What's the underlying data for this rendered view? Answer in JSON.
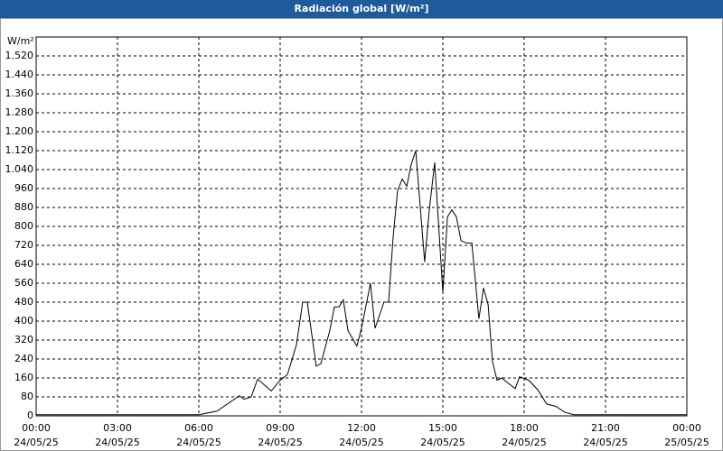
{
  "chart_data": {
    "type": "line",
    "title": "Radiación global [W/m²]",
    "y_unit": "W/m²",
    "x": [
      0,
      6,
      6.67,
      7.5,
      7.67,
      7.93,
      8.17,
      8.67,
      9.0,
      9.27,
      9.6,
      9.83,
      10.0,
      10.33,
      10.5,
      10.83,
      11.0,
      11.17,
      11.33,
      11.5,
      11.83,
      12.0,
      12.33,
      12.5,
      12.83,
      13.0,
      13.17,
      13.33,
      13.5,
      13.67,
      13.83,
      14.0,
      14.33,
      14.5,
      14.7,
      14.87,
      15.0,
      15.17,
      15.33,
      15.5,
      15.67,
      15.87,
      16.07,
      16.33,
      16.5,
      16.67,
      16.83,
      17.0,
      17.17,
      17.5,
      17.67,
      17.83,
      18.17,
      18.5,
      18.83,
      19.17,
      19.5,
      19.83,
      24
    ],
    "series": [
      {
        "name": "Radiación global",
        "color": "#000000",
        "values": [
          5,
          5,
          20,
          85,
          70,
          80,
          155,
          105,
          150,
          175,
          300,
          480,
          480,
          210,
          220,
          360,
          460,
          460,
          490,
          360,
          295,
          370,
          560,
          370,
          480,
          480,
          760,
          950,
          1000,
          970,
          1060,
          1120,
          650,
          870,
          1070,
          760,
          520,
          840,
          870,
          840,
          740,
          730,
          730,
          410,
          540,
          470,
          230,
          150,
          160,
          130,
          115,
          165,
          150,
          110,
          50,
          40,
          15,
          5,
          5
        ]
      }
    ],
    "xlim": [
      0,
      24
    ],
    "xticks": [
      {
        "value": 0,
        "label": "00:00"
      },
      {
        "value": 3,
        "label": "03:00"
      },
      {
        "value": 6,
        "label": "06:00"
      },
      {
        "value": 9,
        "label": "09:00"
      },
      {
        "value": 12,
        "label": "12:00"
      },
      {
        "value": 15,
        "label": "15:00"
      },
      {
        "value": 18,
        "label": "18:00"
      },
      {
        "value": 21,
        "label": "21:00"
      },
      {
        "value": 24,
        "label": "00:00"
      }
    ],
    "xtick_dates": [
      "24/05/25",
      "24/05/25",
      "24/05/25",
      "24/05/25",
      "24/05/25",
      "24/05/25",
      "24/05/25",
      "24/05/25",
      "25/05/25"
    ],
    "ylim": [
      0,
      1600
    ],
    "yticks": [
      0,
      80,
      160,
      240,
      320,
      400,
      480,
      560,
      640,
      720,
      800,
      880,
      960,
      1040,
      1120,
      1200,
      1280,
      1360,
      1440,
      1520
    ],
    "ytick_labels": [
      "0",
      "80",
      "160",
      "240",
      "320",
      "400",
      "480",
      "560",
      "640",
      "720",
      "800",
      "880",
      "960",
      "1.040",
      "1.120",
      "1.200",
      "1.280",
      "1.360",
      "1.440",
      "1.520"
    ],
    "grid": true
  }
}
